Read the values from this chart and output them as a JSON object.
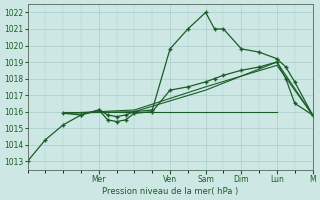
{
  "background_color": "#cde8e4",
  "grid_color": "#a8ccc8",
  "line_color": "#1a5c28",
  "xlabel": "Pression niveau de la mer( hPa )",
  "ylim": [
    1012.5,
    1022.5
  ],
  "yticks": [
    1013,
    1014,
    1015,
    1016,
    1017,
    1018,
    1019,
    1020,
    1021,
    1022
  ],
  "xlim": [
    0,
    16
  ],
  "day_labels": [
    "Mer",
    "Ven",
    "Sam",
    "Dim",
    "Lun",
    "M"
  ],
  "day_positions": [
    4,
    8,
    10,
    12,
    14,
    16
  ],
  "num_x_minor": 1,
  "line1_x": [
    0,
    1,
    2,
    3,
    4,
    4.5,
    5,
    5.5,
    6,
    7,
    8,
    9,
    10,
    10.5,
    11,
    12,
    13,
    14,
    14.5,
    15,
    16
  ],
  "line1_y": [
    1013.0,
    1014.3,
    1015.2,
    1015.8,
    1016.1,
    1015.8,
    1015.7,
    1015.8,
    1016.0,
    1016.1,
    1019.8,
    1021.0,
    1022.0,
    1021.0,
    1021.0,
    1019.8,
    1019.6,
    1019.2,
    1018.7,
    1017.8,
    1015.8
  ],
  "line2_x": [
    2,
    3,
    4,
    4.5,
    5,
    5.5,
    6,
    7,
    8,
    9,
    10,
    10.5,
    11,
    12,
    13,
    14,
    14.5,
    15,
    16
  ],
  "line2_y": [
    1015.9,
    1015.8,
    1016.1,
    1015.5,
    1015.4,
    1015.5,
    1015.9,
    1016.0,
    1017.3,
    1017.5,
    1017.8,
    1018.0,
    1018.2,
    1018.5,
    1018.7,
    1019.0,
    1018.0,
    1016.5,
    1015.8
  ],
  "line3_x": [
    2,
    6,
    10,
    14,
    16
  ],
  "line3_y": [
    1015.9,
    1016.0,
    1017.3,
    1019.0,
    1015.8
  ],
  "line4_x": [
    2,
    6,
    10,
    14,
    16
  ],
  "line4_y": [
    1015.9,
    1016.1,
    1017.5,
    1018.8,
    1015.8
  ],
  "flat_line_x": [
    2,
    14
  ],
  "flat_line_y": [
    1016.0,
    1016.0
  ]
}
